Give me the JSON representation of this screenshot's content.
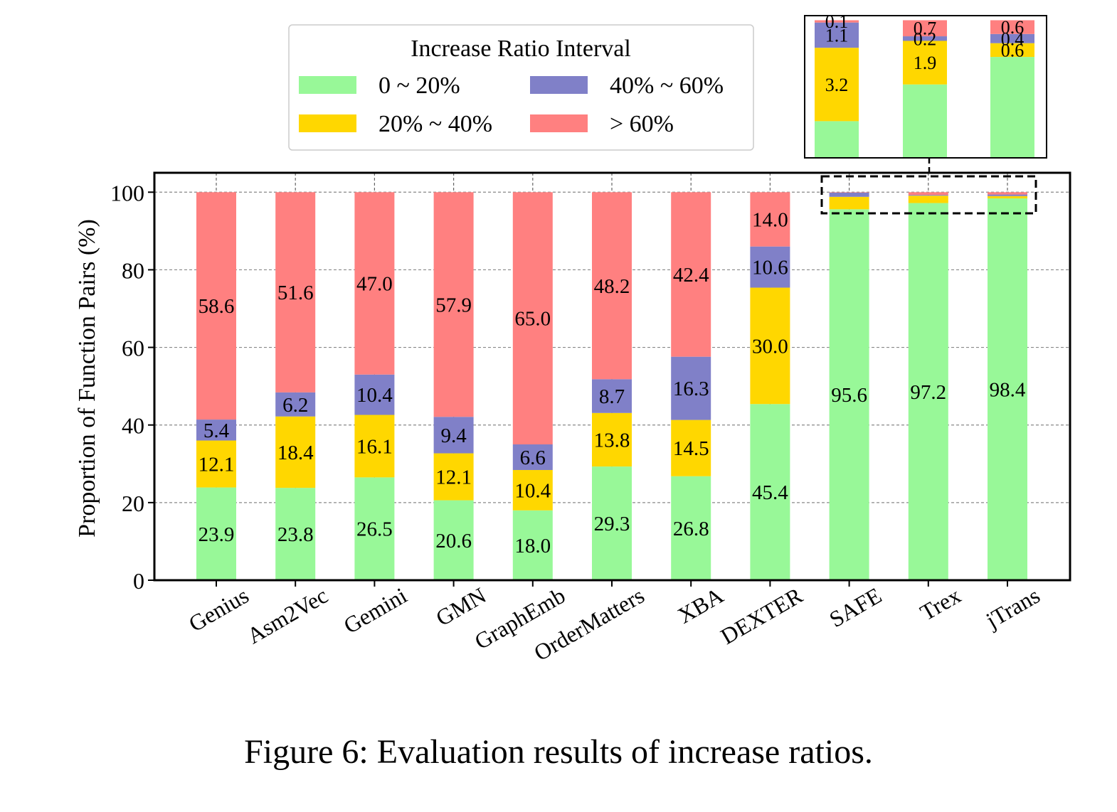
{
  "caption": "Figure 6: Evaluation results of increase ratios.",
  "chart_data": {
    "type": "bar",
    "stacked": true,
    "ylabel": "Proportion of Function Pairs (%)",
    "ylim": [
      0,
      105
    ],
    "yticks": [
      0,
      20,
      40,
      60,
      80,
      100
    ],
    "grid": true,
    "legend": {
      "title": "Increase Ratio Interval",
      "placement": "top-left",
      "entries": [
        "0 ~ 20%",
        "20% ~ 40%",
        "40% ~ 60%",
        "> 60%"
      ]
    },
    "categories": [
      "Genius",
      "Asm2Vec",
      "Gemini",
      "GMN",
      "GraphEmb",
      "OrderMatters",
      "XBA",
      "DEXTER",
      "SAFE",
      "Trex",
      "jTrans"
    ],
    "series": [
      {
        "name": "0 ~ 20%",
        "color": "#98F898",
        "values": [
          23.9,
          23.8,
          26.5,
          20.6,
          18.0,
          29.3,
          26.8,
          45.4,
          95.6,
          97.2,
          98.4
        ]
      },
      {
        "name": "20% ~ 40%",
        "color": "#FFD700",
        "values": [
          12.1,
          18.4,
          16.1,
          12.1,
          10.4,
          13.8,
          14.5,
          30.0,
          3.2,
          1.9,
          0.6
        ]
      },
      {
        "name": "40% ~ 60%",
        "color": "#8080C8",
        "values": [
          5.4,
          6.2,
          10.4,
          9.4,
          6.6,
          8.7,
          16.3,
          10.6,
          1.1,
          0.2,
          0.4
        ]
      },
      {
        "name": "> 60%",
        "color": "#FF8080",
        "values": [
          58.6,
          51.6,
          47.0,
          57.9,
          65.0,
          48.2,
          42.4,
          14.0,
          0.1,
          0.7,
          0.6
        ]
      }
    ],
    "inset": {
      "categories": [
        "SAFE",
        "Trex",
        "jTrans"
      ],
      "ylim": [
        94,
        100.2
      ],
      "labeled_series": [
        "20% ~ 40%",
        "40% ~ 60%",
        "> 60%"
      ]
    }
  }
}
